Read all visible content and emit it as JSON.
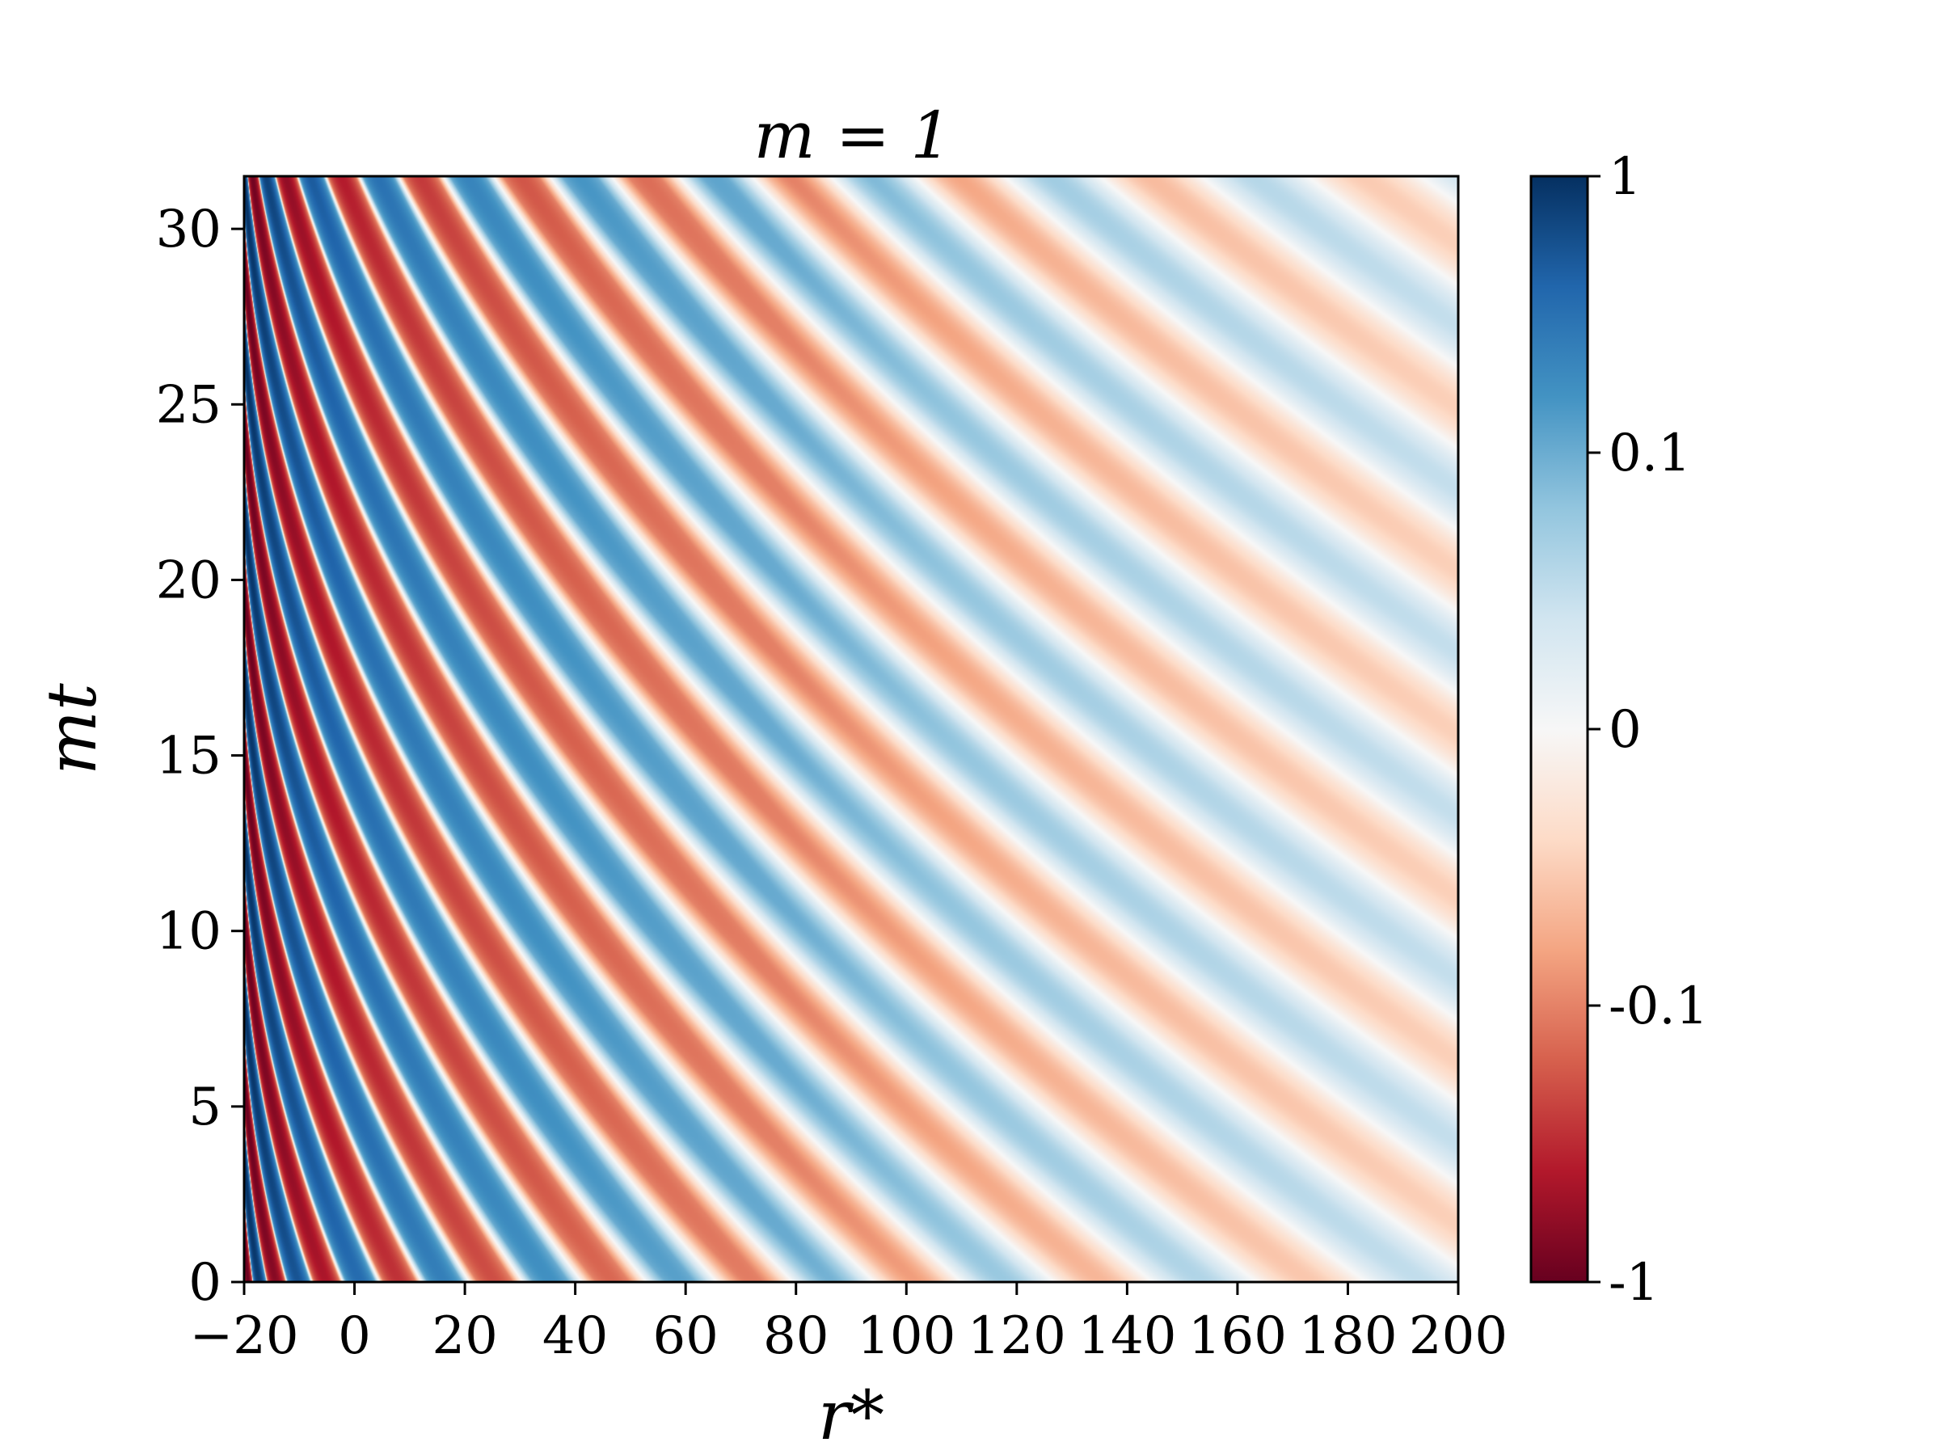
{
  "chart_data": {
    "type": "heatmap",
    "title": "m = 1",
    "xlabel": "r*",
    "ylabel": "mt",
    "xlim": [
      -20,
      200
    ],
    "ylim": [
      0,
      31.5
    ],
    "x_ticks": [
      {
        "value": -20,
        "label": "−20"
      },
      {
        "value": 0,
        "label": "0"
      },
      {
        "value": 20,
        "label": "20"
      },
      {
        "value": 40,
        "label": "40"
      },
      {
        "value": 60,
        "label": "60"
      },
      {
        "value": 80,
        "label": "80"
      },
      {
        "value": 100,
        "label": "100"
      },
      {
        "value": 120,
        "label": "120"
      },
      {
        "value": 140,
        "label": "140"
      },
      {
        "value": 160,
        "label": "160"
      },
      {
        "value": 180,
        "label": "180"
      },
      {
        "value": 200,
        "label": "200"
      }
    ],
    "y_ticks": [
      {
        "value": 0,
        "label": "0"
      },
      {
        "value": 5,
        "label": "5"
      },
      {
        "value": 10,
        "label": "10"
      },
      {
        "value": 15,
        "label": "15"
      },
      {
        "value": 20,
        "label": "20"
      },
      {
        "value": 25,
        "label": "25"
      },
      {
        "value": 30,
        "label": "30"
      }
    ],
    "colorbar": {
      "colormap": "RdBu",
      "range": [
        -1,
        1
      ],
      "ticks": [
        {
          "value": 1,
          "label": "1"
        },
        {
          "value": 0.1,
          "label": "0.1"
        },
        {
          "value": 0,
          "label": "0"
        },
        {
          "value": -0.1,
          "label": "-0.1"
        },
        {
          "value": -1,
          "label": "-1"
        }
      ],
      "colors": [
        "#67001f",
        "#b2182b",
        "#d6604d",
        "#f4a582",
        "#fddbc7",
        "#f7f7f7",
        "#d1e5f0",
        "#92c5de",
        "#4393c3",
        "#2166ac",
        "#053061"
      ]
    },
    "field": {
      "description": "oscillating wave pattern with stripes curving from left (strong, dense) to right (faint, wide)"
    },
    "grid": false
  }
}
